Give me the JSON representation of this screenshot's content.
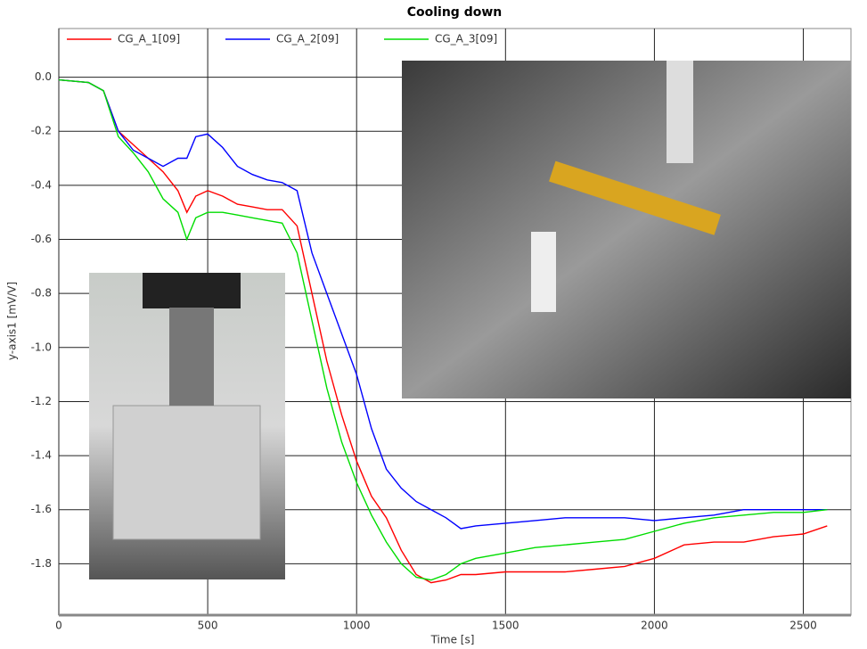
{
  "chart_data": {
    "type": "line",
    "title": "Cooling down",
    "x_label": "Time [s]",
    "y_label": "y-axis1 [mV/V]",
    "x": [
      0,
      100,
      150,
      200,
      250,
      300,
      350,
      400,
      430,
      460,
      500,
      550,
      600,
      650,
      700,
      750,
      800,
      850,
      900,
      950,
      1000,
      1050,
      1100,
      1150,
      1200,
      1250,
      1300,
      1350,
      1400,
      1500,
      1600,
      1700,
      1800,
      1900,
      2000,
      2100,
      2200,
      2300,
      2400,
      2500,
      2580
    ],
    "series": [
      {
        "name": "CG_A_1[09]",
        "color": "#ff0000",
        "values": [
          -0.01,
          -0.02,
          -0.05,
          -0.2,
          -0.25,
          -0.3,
          -0.35,
          -0.42,
          -0.5,
          -0.44,
          -0.42,
          -0.44,
          -0.47,
          -0.48,
          -0.49,
          -0.49,
          -0.55,
          -0.8,
          -1.05,
          -1.25,
          -1.42,
          -1.55,
          -1.63,
          -1.75,
          -1.84,
          -1.87,
          -1.86,
          -1.84,
          -1.84,
          -1.83,
          -1.83,
          -1.83,
          -1.82,
          -1.81,
          -1.78,
          -1.73,
          -1.72,
          -1.72,
          -1.7,
          -1.69,
          -1.66
        ]
      },
      {
        "name": "CG_A_2[09]",
        "color": "#0000ff",
        "values": [
          -0.01,
          -0.02,
          -0.05,
          -0.2,
          -0.27,
          -0.3,
          -0.33,
          -0.3,
          -0.3,
          -0.22,
          -0.21,
          -0.26,
          -0.33,
          -0.36,
          -0.38,
          -0.39,
          -0.42,
          -0.65,
          -0.8,
          -0.95,
          -1.1,
          -1.3,
          -1.45,
          -1.52,
          -1.57,
          -1.6,
          -1.63,
          -1.67,
          -1.66,
          -1.65,
          -1.64,
          -1.63,
          -1.63,
          -1.63,
          -1.64,
          -1.63,
          -1.62,
          -1.6,
          -1.6,
          -1.6,
          -1.6
        ]
      },
      {
        "name": "CG_A_3[09]",
        "color": "#00dd00",
        "values": [
          -0.01,
          -0.02,
          -0.05,
          -0.22,
          -0.28,
          -0.35,
          -0.45,
          -0.5,
          -0.6,
          -0.52,
          -0.5,
          -0.5,
          -0.51,
          -0.52,
          -0.53,
          -0.54,
          -0.65,
          -0.9,
          -1.15,
          -1.35,
          -1.5,
          -1.62,
          -1.72,
          -1.8,
          -1.85,
          -1.86,
          -1.84,
          -1.8,
          -1.78,
          -1.76,
          -1.74,
          -1.73,
          -1.72,
          -1.71,
          -1.68,
          -1.65,
          -1.63,
          -1.62,
          -1.61,
          -1.61,
          -1.6
        ]
      }
    ],
    "xlim": [
      0,
      2660
    ],
    "ylim": [
      -1.99,
      0.18
    ],
    "xticks": [
      0,
      500,
      1000,
      1500,
      2000,
      2500
    ],
    "yticks": [
      {
        "value": 0,
        "label": "0.0"
      },
      -0.2,
      -0.4,
      -0.6,
      -0.8,
      {
        "value": -1,
        "label": "-1.0"
      },
      -1.2,
      -1.4,
      -1.6,
      -1.8
    ],
    "grid": true
  }
}
